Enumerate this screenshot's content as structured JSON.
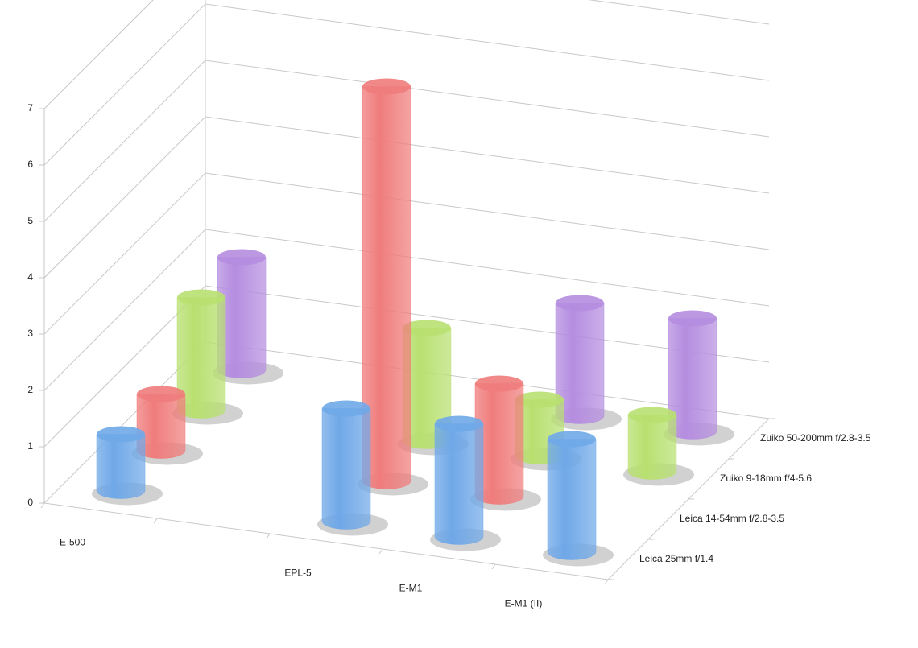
{
  "chart_data": {
    "type": "bar3d",
    "categories": [
      "E-500",
      null,
      "EPL-5",
      "E-M1",
      "E-M1 (II)"
    ],
    "series": [
      {
        "name": "Leica 25mm f/1.4",
        "color": "#6fa8e8",
        "values": [
          1,
          null,
          2,
          2,
          2
        ]
      },
      {
        "name": "Leica 14-54mm f/2.8-3.5",
        "color": "#f07c7c",
        "values": [
          1,
          null,
          7,
          2,
          null
        ]
      },
      {
        "name": "Zuiko 9-18mm f/4-5.6",
        "color": "#b8e070",
        "values": [
          2,
          null,
          2,
          1,
          1
        ]
      },
      {
        "name": "Zuiko 50-200mm f/2.8-3.5",
        "color": "#b58de0",
        "values": [
          2,
          null,
          null,
          2,
          2
        ]
      }
    ],
    "ylim": [
      0,
      7
    ],
    "yticks": [
      0,
      1,
      2,
      3,
      4,
      5,
      6,
      7
    ],
    "grid": true
  }
}
